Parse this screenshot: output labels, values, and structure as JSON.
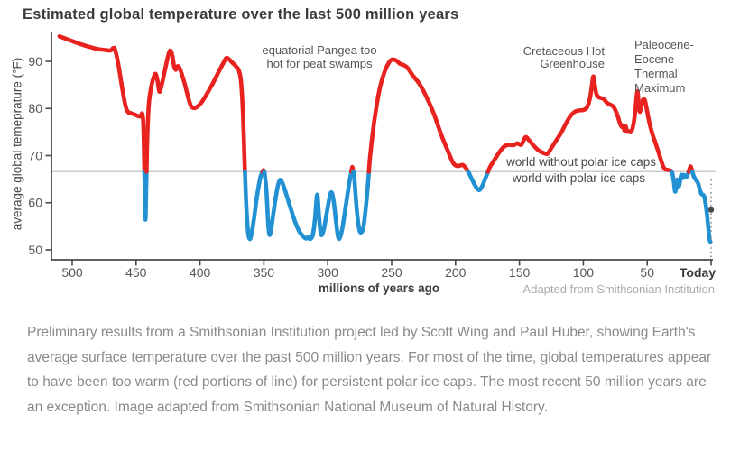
{
  "title": "Estimated global temperature over the last 500 million years",
  "annotations": {
    "pangea": "equatorial Pangea too\nhot for peat swamps",
    "cretaceous": "Cretaceous Hot\nGreenhouse",
    "petm": "Paleocene-\nEocene\nThermal\nMaximum",
    "no_ice": "world without polar ice caps",
    "with_ice": "world with polar ice caps",
    "credit": "Adapted from Smithsonian Institution"
  },
  "caption": "Preliminary results from a Smithsonian Institution project led by Scott Wing and Paul Huber, showing Earth's average surface temperature over the past 500 million years.  For most of the time, global temperatures appear to have been too warm (red portions of line) for persistent polar ice caps. The most recent 50 million years are an exception. Image adapted from Smithsonian National Museum of Natural History.",
  "chart_data": {
    "type": "line",
    "title": "Estimated global temperature over the last 500 million years",
    "xlabel": "millions of years ago",
    "ylabel": "average global temeprature (°F)",
    "x_range": [
      510,
      0
    ],
    "y_range": [
      48,
      96
    ],
    "grid": "single horizontal line at ice-cap threshold",
    "threshold_f": 66.6,
    "threshold_meaning": "above = world without polar ice caps (red), below = world with polar ice caps (blue)",
    "colors": {
      "above": "#e8231f",
      "below": "#2191d3",
      "grid": "#cbcbcb",
      "axis": "#4a4a4a"
    },
    "y_ticks": [
      90,
      80,
      70,
      60,
      50
    ],
    "x_ticks": [
      {
        "value": 500,
        "label": "500"
      },
      {
        "value": 450,
        "label": "450"
      },
      {
        "value": 400,
        "label": "400"
      },
      {
        "value": 350,
        "label": "350"
      },
      {
        "value": 300,
        "label": "300"
      },
      {
        "value": 250,
        "label": "250"
      },
      {
        "value": 200,
        "label": "200"
      },
      {
        "value": 150,
        "label": "150"
      },
      {
        "value": 100,
        "label": "100"
      },
      {
        "value": 50,
        "label": "50"
      },
      {
        "value": 0,
        "label": "Today",
        "bold": true,
        "dx": -15
      }
    ],
    "today_marker": {
      "myr": 0,
      "temp_f": 58.5
    },
    "points": [
      [
        510,
        95.3
      ],
      [
        502,
        94.5
      ],
      [
        494,
        93.7
      ],
      [
        487,
        93.1
      ],
      [
        480,
        92.6
      ],
      [
        474,
        92.4
      ],
      [
        470,
        92.3
      ],
      [
        468,
        92.8
      ],
      [
        466.5,
        92.5
      ],
      [
        464,
        89.5
      ],
      [
        461,
        84.5
      ],
      [
        458.5,
        80.8
      ],
      [
        456.5,
        79.3
      ],
      [
        454,
        79.0
      ],
      [
        451,
        78.7
      ],
      [
        448.5,
        78.4
      ],
      [
        446.5,
        78.3
      ],
      [
        445.2,
        78.9
      ],
      [
        444.3,
        76.5
      ],
      [
        443.3,
        64
      ],
      [
        442.7,
        56.4
      ],
      [
        442.1,
        63
      ],
      [
        441.2,
        74
      ],
      [
        440,
        81
      ],
      [
        438,
        84.8
      ],
      [
        436,
        86.8
      ],
      [
        434.6,
        87.3
      ],
      [
        433.2,
        85.8
      ],
      [
        431.8,
        83.6
      ],
      [
        430.6,
        84.3
      ],
      [
        428.5,
        86.8
      ],
      [
        426.5,
        89.3
      ],
      [
        424.8,
        91.3
      ],
      [
        423.3,
        92.3
      ],
      [
        421.8,
        91.4
      ],
      [
        420.3,
        89.0
      ],
      [
        419,
        88.2
      ],
      [
        417.8,
        88.9
      ],
      [
        416.4,
        88.8
      ],
      [
        414.5,
        87.5
      ],
      [
        412,
        85.3
      ],
      [
        409.5,
        82.6
      ],
      [
        407.2,
        80.6
      ],
      [
        405,
        80.1
      ],
      [
        402.5,
        80.3
      ],
      [
        399,
        81.2
      ],
      [
        395,
        82.9
      ],
      [
        390,
        85.3
      ],
      [
        385.5,
        87.7
      ],
      [
        382,
        89.5
      ],
      [
        379.5,
        90.7
      ],
      [
        377.5,
        90.5
      ],
      [
        375,
        89.8
      ],
      [
        372,
        89.0
      ],
      [
        369.5,
        88.0
      ],
      [
        367.8,
        85.5
      ],
      [
        366.3,
        78.5
      ],
      [
        365,
        68
      ],
      [
        363.7,
        59
      ],
      [
        362.3,
        53.6
      ],
      [
        361,
        52.3
      ],
      [
        359.8,
        53.2
      ],
      [
        357.8,
        56.5
      ],
      [
        355.3,
        61.5
      ],
      [
        352.8,
        65.3
      ],
      [
        351.2,
        66.5
      ],
      [
        350.3,
        66.9
      ],
      [
        349.4,
        66.2
      ],
      [
        348,
        62.5
      ],
      [
        346.6,
        55.5
      ],
      [
        345.6,
        53.2
      ],
      [
        344.3,
        54.4
      ],
      [
        342,
        58.8
      ],
      [
        339.5,
        63
      ],
      [
        337.5,
        64.8
      ],
      [
        335.5,
        64.2
      ],
      [
        332.5,
        61.8
      ],
      [
        329.5,
        59.2
      ],
      [
        325.5,
        55.9
      ],
      [
        322,
        53.8
      ],
      [
        319,
        52.8
      ],
      [
        317,
        52.4
      ],
      [
        315.3,
        52.7
      ],
      [
        313.8,
        52.3
      ],
      [
        311.8,
        53.1
      ],
      [
        310,
        56.5
      ],
      [
        308.3,
        61.7
      ],
      [
        306.8,
        57
      ],
      [
        305.3,
        53.3
      ],
      [
        303.3,
        54.1
      ],
      [
        300.8,
        57.8
      ],
      [
        298.3,
        61.5
      ],
      [
        296.8,
        62.1
      ],
      [
        295.3,
        60.2
      ],
      [
        293.3,
        55.5
      ],
      [
        291.8,
        52.6
      ],
      [
        290.3,
        52.7
      ],
      [
        288.3,
        55
      ],
      [
        285.8,
        59.5
      ],
      [
        283,
        64.5
      ],
      [
        280.8,
        67.6
      ],
      [
        279.3,
        65.5
      ],
      [
        277.3,
        58.5
      ],
      [
        275.3,
        54.3
      ],
      [
        273.5,
        53.8
      ],
      [
        271.8,
        55.3
      ],
      [
        269.3,
        61.5
      ],
      [
        266.8,
        70
      ],
      [
        263.5,
        77.5
      ],
      [
        259.5,
        84
      ],
      [
        255.5,
        87.8
      ],
      [
        252,
        89.8
      ],
      [
        249.5,
        90.4
      ],
      [
        246.5,
        90.2
      ],
      [
        243.5,
        89.5
      ],
      [
        240.5,
        89.2
      ],
      [
        237.5,
        88.6
      ],
      [
        233.5,
        87.0
      ],
      [
        228.5,
        85.3
      ],
      [
        223,
        82.6
      ],
      [
        217,
        78.9
      ],
      [
        211,
        74.3
      ],
      [
        206,
        71.0
      ],
      [
        202,
        68.5
      ],
      [
        199,
        67.8
      ],
      [
        196.5,
        67.9
      ],
      [
        194.2,
        68.0
      ],
      [
        192,
        67.4
      ],
      [
        189.5,
        66.3
      ],
      [
        186.5,
        64.6
      ],
      [
        183.5,
        63.1
      ],
      [
        181.3,
        62.7
      ],
      [
        179,
        63.6
      ],
      [
        176,
        65.6
      ],
      [
        173,
        67.6
      ],
      [
        170,
        68.9
      ],
      [
        166,
        70.6
      ],
      [
        162,
        71.9
      ],
      [
        158.5,
        72.3
      ],
      [
        155,
        72.2
      ],
      [
        151.5,
        72.6
      ],
      [
        148.5,
        72.3
      ],
      [
        145.3,
        73.9
      ],
      [
        142.3,
        73.2
      ],
      [
        138.5,
        72.0
      ],
      [
        134.5,
        71.0
      ],
      [
        130.5,
        70.5
      ],
      [
        128,
        70.4
      ],
      [
        125,
        71.6
      ],
      [
        121,
        73.3
      ],
      [
        117,
        75.0
      ],
      [
        113,
        77.1
      ],
      [
        109.5,
        78.6
      ],
      [
        106,
        79.4
      ],
      [
        102.5,
        79.6
      ],
      [
        99.5,
        79.7
      ],
      [
        97,
        80.3
      ],
      [
        94.8,
        82.2
      ],
      [
        93.2,
        85
      ],
      [
        92.2,
        86.8
      ],
      [
        91.2,
        85.3
      ],
      [
        89.8,
        83.1
      ],
      [
        88,
        82.4
      ],
      [
        86,
        82.2
      ],
      [
        84,
        82.0
      ],
      [
        81.5,
        81.2
      ],
      [
        78.8,
        80.8
      ],
      [
        76.2,
        80.3
      ],
      [
        73.5,
        78.7
      ],
      [
        71.5,
        77.0
      ],
      [
        70,
        76.1
      ],
      [
        68.8,
        76.4
      ],
      [
        67.8,
        75.3
      ],
      [
        66.8,
        76.2
      ],
      [
        65.8,
        75.1
      ],
      [
        64.5,
        75.2
      ],
      [
        62.8,
        75.0
      ],
      [
        61,
        76.3
      ],
      [
        59.3,
        79.5
      ],
      [
        57.8,
        83.6
      ],
      [
        56.8,
        81.5
      ],
      [
        55.8,
        79.3
      ],
      [
        54.5,
        80.8
      ],
      [
        53.2,
        81.9
      ],
      [
        51.8,
        81.7
      ],
      [
        50.2,
        79.6
      ],
      [
        48.2,
        76.9
      ],
      [
        46,
        74.6
      ],
      [
        43.8,
        72.9
      ],
      [
        41.5,
        71.0
      ],
      [
        39.5,
        69.3
      ],
      [
        37.5,
        67.7
      ],
      [
        36,
        67.1
      ],
      [
        34.5,
        67.0
      ],
      [
        33,
        66.9
      ],
      [
        31.5,
        66.8
      ],
      [
        30.3,
        66.2
      ],
      [
        29.2,
        64.5
      ],
      [
        28.2,
        62.4
      ],
      [
        27.2,
        63.2
      ],
      [
        26.4,
        64.9
      ],
      [
        25.7,
        63.9
      ],
      [
        25,
        63.6
      ],
      [
        24.2,
        64.8
      ],
      [
        23.4,
        65.9
      ],
      [
        22.6,
        65.2
      ],
      [
        21.9,
        65.9
      ],
      [
        21.1,
        65.3
      ],
      [
        20.3,
        65.8
      ],
      [
        19.3,
        65.4
      ],
      [
        18.3,
        66.0
      ],
      [
        17.2,
        66.9
      ],
      [
        16.2,
        67.7
      ],
      [
        15.2,
        67.1
      ],
      [
        14.2,
        66.1
      ],
      [
        13.2,
        65.4
      ],
      [
        11.8,
        64.8
      ],
      [
        10.5,
        64.3
      ],
      [
        9.4,
        63.4
      ],
      [
        8.4,
        62.4
      ],
      [
        7.4,
        61.8
      ],
      [
        6.4,
        61.7
      ],
      [
        5.5,
        61.4
      ],
      [
        4.6,
        60.3
      ],
      [
        3.6,
        58.4
      ],
      [
        2.6,
        55.9
      ],
      [
        1.7,
        53.4
      ],
      [
        1,
        52.0
      ],
      [
        0.5,
        51.7
      ]
    ]
  }
}
